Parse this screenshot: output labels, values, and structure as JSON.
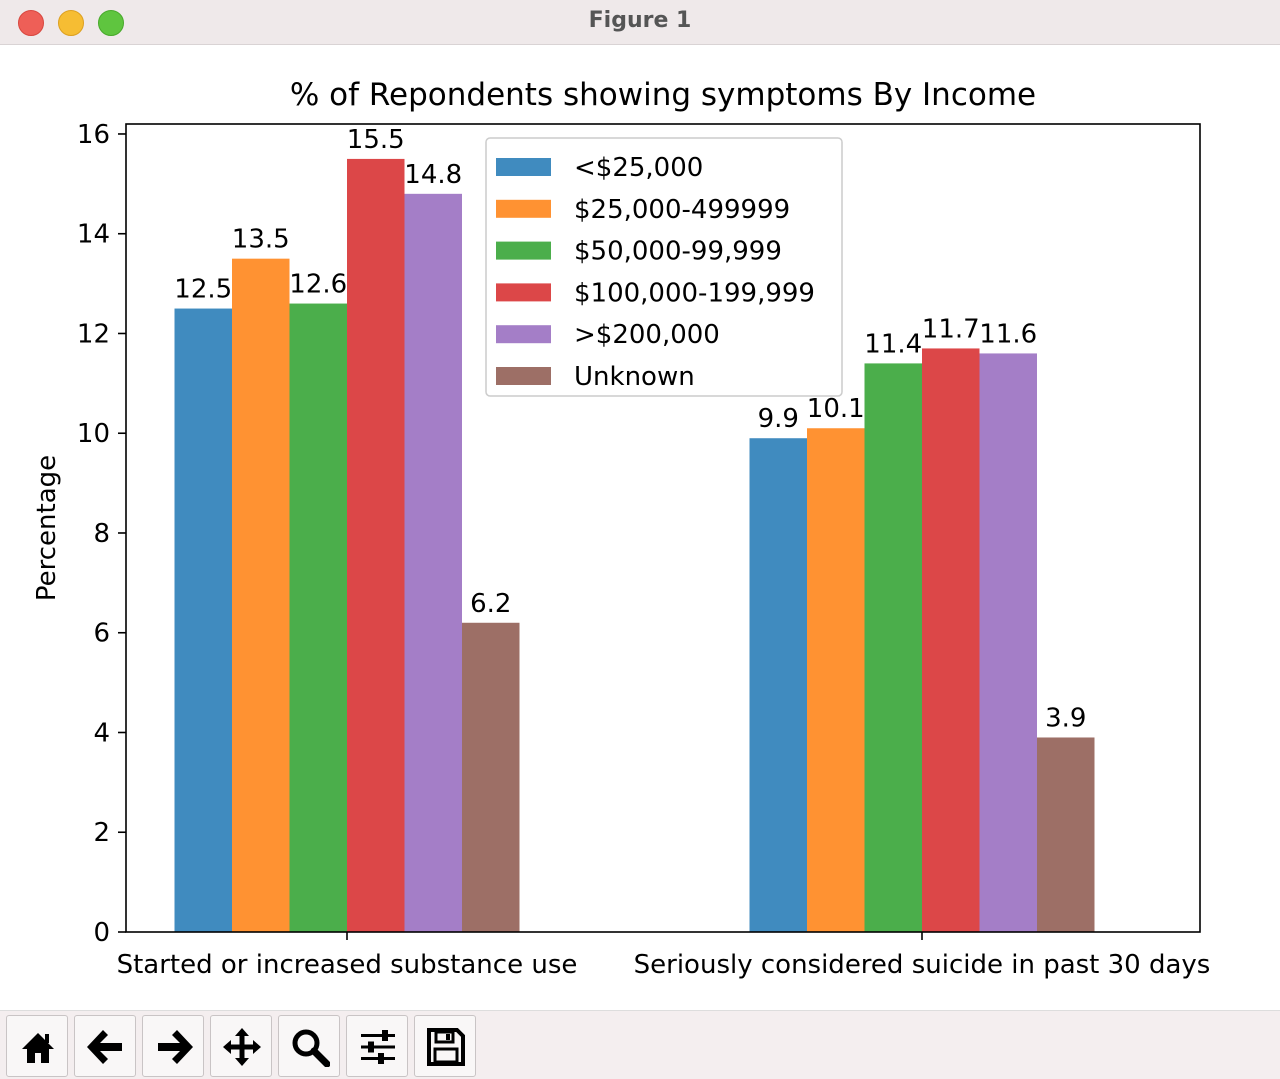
{
  "window": {
    "title": "Figure 1"
  },
  "toolbar": {
    "tools": [
      {
        "name": "home-icon"
      },
      {
        "name": "back-arrow-icon"
      },
      {
        "name": "forward-arrow-icon"
      },
      {
        "name": "pan-icon"
      },
      {
        "name": "zoom-icon"
      },
      {
        "name": "subplots-config-icon"
      },
      {
        "name": "save-icon"
      }
    ]
  },
  "chart_data": {
    "type": "bar",
    "title": "% of Repondents showing symptoms By Income",
    "xlabel": "",
    "ylabel": "Percentage",
    "ylim": [
      0,
      16.2
    ],
    "yticks": [
      "0",
      "2",
      "4",
      "6",
      "8",
      "10",
      "12",
      "14",
      "16"
    ],
    "categories": [
      "Started or increased substance use",
      "Seriously considered suicide in past 30 days"
    ],
    "series": [
      {
        "name": "<$25,000",
        "color": "#1f77b4",
        "values": [
          12.5,
          9.9
        ],
        "labels": [
          "12.5",
          "9.9"
        ]
      },
      {
        "name": "$25,000-499999",
        "color": "#ff7f0e",
        "values": [
          13.5,
          10.1
        ],
        "labels": [
          "13.5",
          "10.1"
        ]
      },
      {
        "name": "$50,000-99,999",
        "color": "#2ca02c",
        "values": [
          12.6,
          11.4
        ],
        "labels": [
          "12.6",
          "11.4"
        ]
      },
      {
        "name": "$100,000-199,999",
        "color": "#d62728",
        "values": [
          15.5,
          11.7
        ],
        "labels": [
          "15.5",
          "11.7"
        ]
      },
      {
        "name": ">$200,000",
        "color": "#9467bd",
        "values": [
          14.8,
          11.6
        ],
        "labels": [
          "14.8",
          "11.6"
        ]
      },
      {
        "name": "Unknown",
        "color": "#8c564b",
        "values": [
          6.2,
          3.9
        ],
        "labels": [
          "6.2",
          "3.9"
        ]
      }
    ],
    "legend": "upper-center",
    "grid": false
  }
}
